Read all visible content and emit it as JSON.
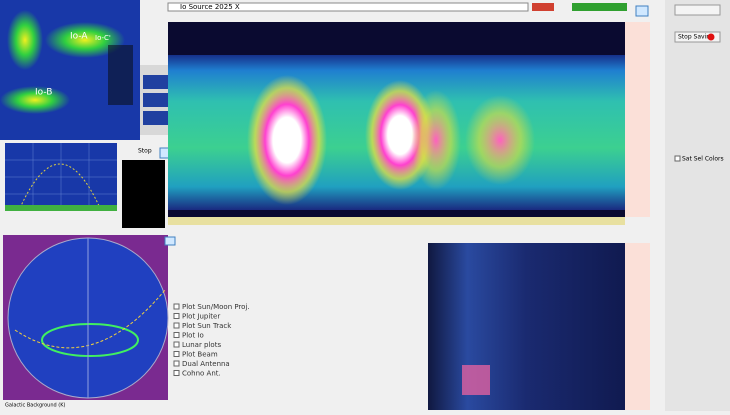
{
  "io_plot": {
    "labels": [
      "Io-A",
      "Io-C'",
      "Io-B"
    ]
  },
  "top_bar": {
    "file_field": "Io Source 2025 X"
  },
  "sky_map": {
    "caption": "Galactic Background (K)"
  },
  "options": [
    "Plot Sun/Moon Proj.",
    "Plot Jupiter",
    "Plot Sun Track",
    "Plot Io",
    "Lunar plots",
    "Plot Beam",
    "Dual Antenna",
    "Cohno Ant."
  ],
  "controls": {
    "stop_saving": "Stop Saving",
    "stop": "Stop",
    "sel_colors": "Sat Sel Colors"
  }
}
